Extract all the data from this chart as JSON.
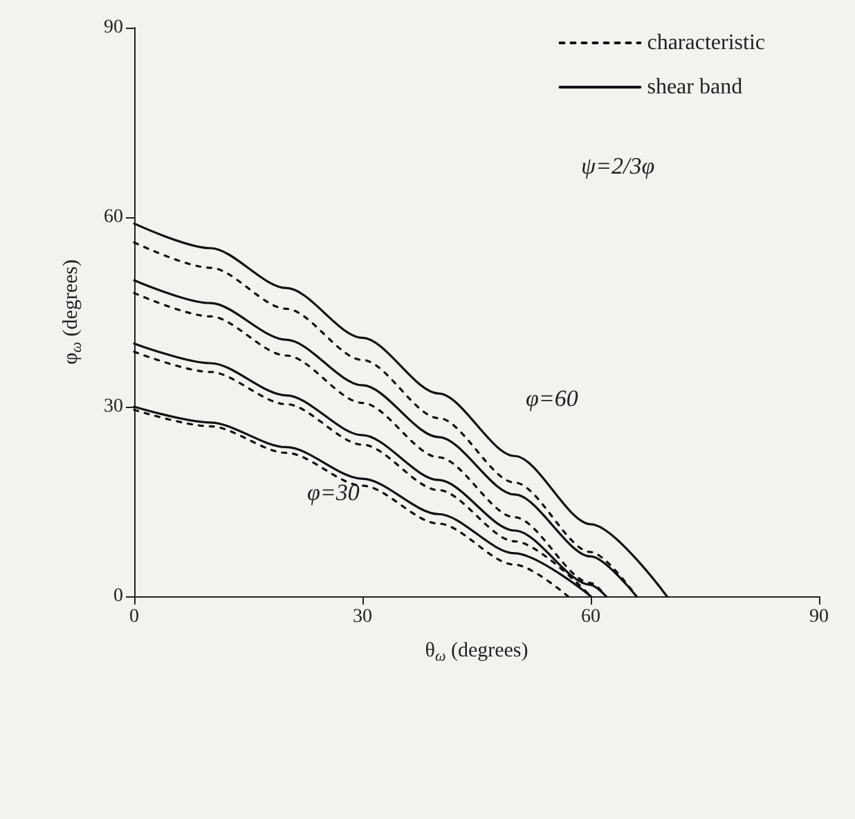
{
  "chart_data": {
    "type": "line",
    "xlabel": "θ$_{ω}$ (degrees)",
    "ylabel": "φ$_{ω}$ (degrees)",
    "xlim": [
      0,
      90
    ],
    "ylim": [
      0,
      90
    ],
    "xticks": [
      0,
      30,
      60,
      90
    ],
    "yticks": [
      0,
      30,
      60,
      90
    ],
    "grid": false,
    "legend": "top right",
    "marker": "none",
    "series": [
      {
        "name": "characteristic",
        "color": "#111111",
        "line_style": "dotted",
        "x": [
          0,
          10,
          20,
          30,
          40,
          50,
          60,
          66
        ],
        "values": [
          56,
          52.0,
          45.5,
          37.4,
          28.2,
          18.0,
          7.0,
          0
        ]
      },
      {
        "name": "shear band",
        "color": "#111111",
        "line_style": "solid",
        "x": [
          0,
          10,
          20,
          30,
          40,
          50,
          60,
          70
        ],
        "values": [
          59,
          55.1,
          48.8,
          40.9,
          32.1,
          22.2,
          11.4,
          0
        ]
      },
      {
        "color": "#111111",
        "line_style": "dotted",
        "x": [
          0,
          10,
          20,
          30,
          40,
          50,
          60,
          62
        ],
        "values": [
          48,
          44.3,
          38.1,
          30.6,
          22.0,
          12.5,
          2.1,
          0
        ]
      },
      {
        "color": "#111111",
        "line_style": "solid",
        "x": [
          0,
          10,
          20,
          30,
          40,
          50,
          60,
          66
        ],
        "values": [
          50,
          46.4,
          40.6,
          33.4,
          25.2,
          16.1,
          6.3,
          0
        ]
      },
      {
        "color": "#111111",
        "line_style": "dotted",
        "x": [
          0,
          10,
          20,
          30,
          40,
          50,
          60
        ],
        "values": [
          38.7,
          35.5,
          30.4,
          24.0,
          16.8,
          8.7,
          0
        ]
      },
      {
        "color": "#111111",
        "line_style": "solid",
        "x": [
          0,
          10,
          20,
          30,
          40,
          50,
          60,
          62
        ],
        "values": [
          40,
          36.9,
          31.8,
          25.5,
          18.4,
          10.4,
          1.8,
          0
        ]
      },
      {
        "color": "#111111",
        "line_style": "dotted",
        "x": [
          0,
          10,
          20,
          30,
          40,
          50,
          57
        ],
        "values": [
          29.5,
          26.9,
          22.7,
          17.5,
          11.5,
          5.0,
          0
        ]
      },
      {
        "color": "#111111",
        "line_style": "solid",
        "x": [
          0,
          10,
          20,
          30,
          40,
          50,
          60
        ],
        "values": [
          30,
          27.5,
          23.6,
          18.6,
          13.0,
          6.8,
          0
        ]
      }
    ],
    "annotations": [
      "ψ=2/3φ",
      "φ=60",
      "φ=30"
    ]
  }
}
